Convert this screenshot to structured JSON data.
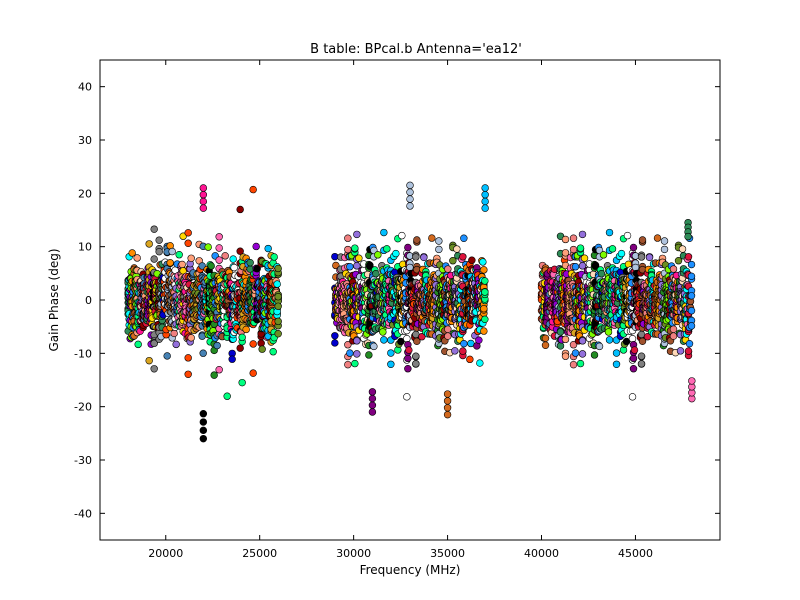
{
  "chart_data": {
    "type": "scatter",
    "title": "B table: BPcal.b      Antenna='ea12'",
    "xlabel": "Frequency (MHz)",
    "ylabel": "Gain Phase (deg)",
    "xlim": [
      16500,
      49500
    ],
    "ylim": [
      -45,
      45
    ],
    "xticks": [
      20000,
      25000,
      30000,
      35000,
      40000,
      45000
    ],
    "yticks": [
      -40,
      -30,
      -20,
      -10,
      0,
      10,
      20,
      30,
      40
    ],
    "grid": false,
    "legend": "none",
    "bands": [
      {
        "x_start": 18000,
        "x_end": 26000,
        "y_min": -26,
        "y_max": 21
      },
      {
        "x_start": 29000,
        "x_end": 37000,
        "y_min": -21.5,
        "y_max": 21.5
      },
      {
        "x_start": 40000,
        "x_end": 48000,
        "y_min": -19,
        "y_max": 16
      }
    ],
    "extreme_points": [
      {
        "x": 22000,
        "y": -26
      },
      {
        "x": 22000,
        "y": 21
      },
      {
        "x": 33000,
        "y": 21.5
      },
      {
        "x": 37000,
        "y": 21
      },
      {
        "x": 35000,
        "y": -21.5
      },
      {
        "x": 31000,
        "y": -21
      },
      {
        "x": 48000,
        "y": -18.5
      },
      {
        "x": 47800,
        "y": 14.5
      }
    ],
    "series_colors": [
      "#000000",
      "#1e90ff",
      "#ff4500",
      "#00ff7f",
      "#ffa07a",
      "#800080",
      "#00ffff",
      "#ff1493",
      "#7cfc00",
      "#ffd700",
      "#0000cd",
      "#a0522d",
      "#ff69b4",
      "#808080",
      "#b0c4de",
      "#ff8c00",
      "#228b22",
      "#9370db",
      "#dc143c",
      "#2e8b57",
      "#daa520",
      "#00bfff",
      "#ffdab9",
      "#8b0000",
      "#f08080",
      "#6b8e23",
      "#4682b4",
      "#ffffff",
      "#d2691e",
      "#9400d3"
    ]
  }
}
